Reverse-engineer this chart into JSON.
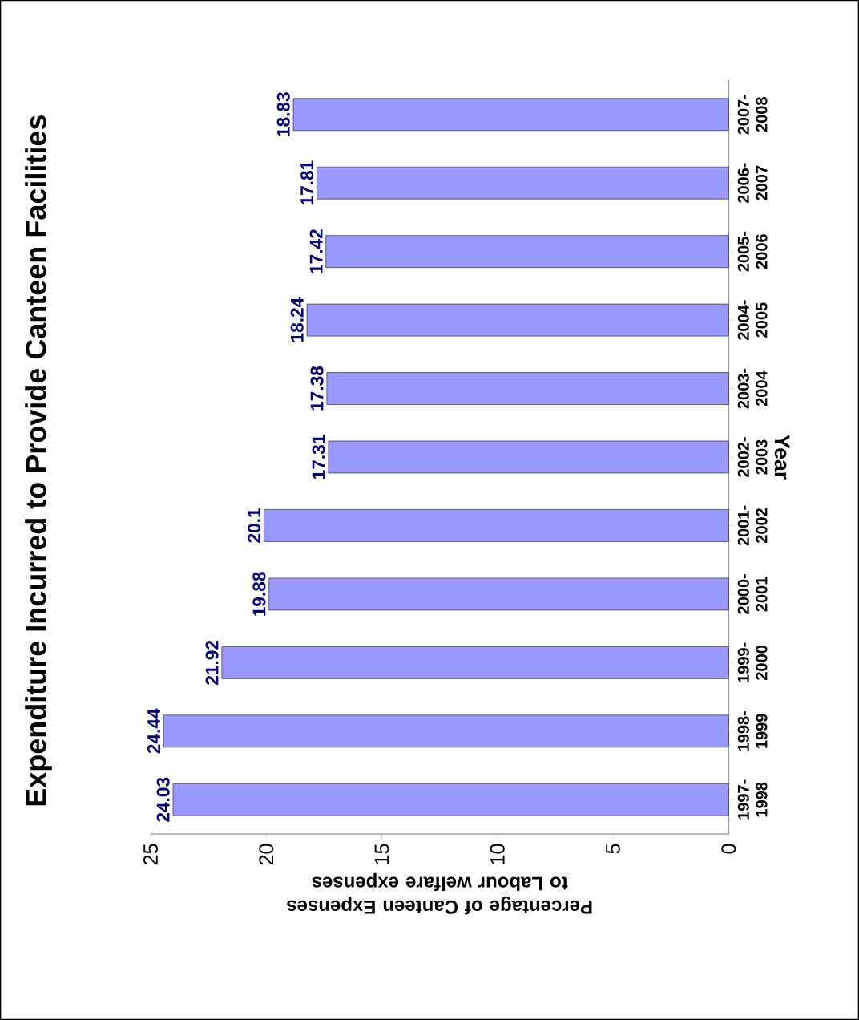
{
  "chart_data": {
    "type": "bar",
    "orientation": "horizontal",
    "title": "Expenditure Incurred to Provide Canteen Facilities",
    "xlabel": "Percentage of Canteen Expenses to Labour welfare expenses",
    "ylabel": "Year",
    "categories": [
      "2007- 2008",
      "2006- 2007",
      "2005- 2006",
      "2004- 2005",
      "2003- 2004",
      "2002- 2003",
      "2001- 2002",
      "2000- 2001",
      "1999- 2000",
      "1998- 1999",
      "1997- 1998"
    ],
    "values": [
      18.83,
      17.81,
      17.42,
      18.24,
      17.38,
      17.31,
      20.1,
      19.88,
      21.92,
      24.44,
      24.03
    ],
    "color": "#9999ff",
    "data_labels": true,
    "xlim": [
      25,
      0
    ],
    "xticks": [
      25,
      20,
      15,
      10,
      5,
      0
    ],
    "grid": false
  }
}
